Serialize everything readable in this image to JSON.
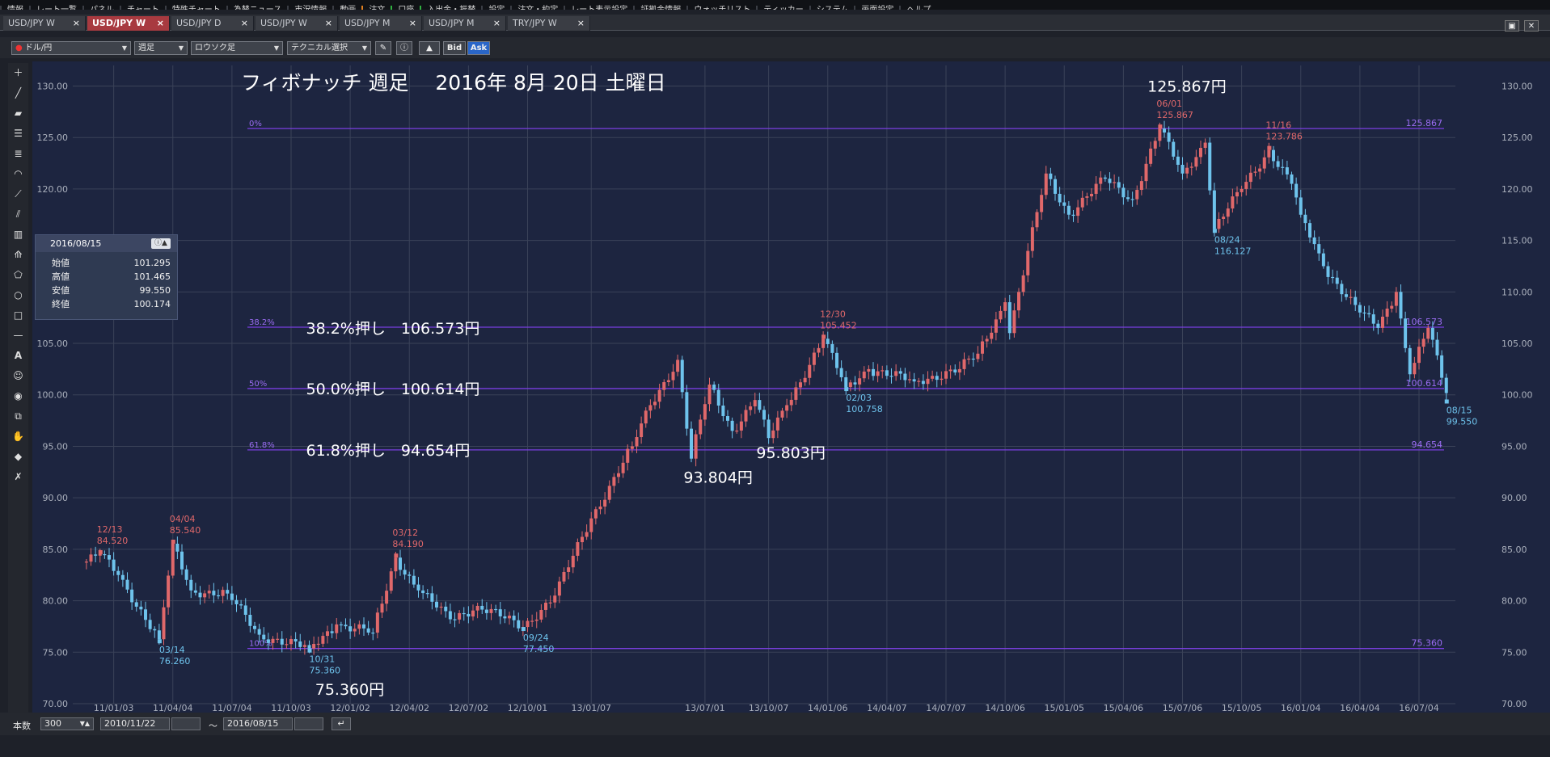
{
  "menu": [
    "情報",
    "レート一覧",
    "パネル",
    "チャート",
    "特殊チャート",
    "為替ニュース",
    "市況情報",
    "動画",
    "注文",
    "口座",
    "入出金・振替",
    "設定",
    "注文・約定",
    "レート表示設定",
    "証拠金情報",
    "ウォッチリスト",
    "ティッカー",
    "システム",
    "画面設定",
    "ヘルプ"
  ],
  "tabs": [
    {
      "label": "USD/JPY W",
      "active": false
    },
    {
      "label": "USD/JPY W",
      "active": true
    },
    {
      "label": "USD/JPY D",
      "active": false
    },
    {
      "label": "USD/JPY W",
      "active": false
    },
    {
      "label": "USD/JPY M",
      "active": false
    },
    {
      "label": "USD/JPY M",
      "active": false
    },
    {
      "label": "TRY/JPY W",
      "active": false
    }
  ],
  "tab_close": "×",
  "toolbar": {
    "pair": "ドル/円",
    "period": "週足",
    "chart_type": "ロウソク足",
    "technical": "テクニカル選択",
    "bid": "Bid",
    "ask": "Ask"
  },
  "info_panel": {
    "date": "2016/08/15",
    "rows": [
      {
        "label": "始値",
        "value": "101.295"
      },
      {
        "label": "高値",
        "value": "101.465"
      },
      {
        "label": "安値",
        "value": "99.550"
      },
      {
        "label": "終値",
        "value": "100.174"
      }
    ]
  },
  "bottom": {
    "count_label": "本数",
    "count_value": "300",
    "start_date": "2010/11/22",
    "tilde": "〜",
    "end_date": "2016/08/15"
  },
  "colors": {
    "up": "#e0686a",
    "down": "#6ec3ec",
    "fib_line": "#7a3fe0",
    "fib_text": "#9a6cf2",
    "high_label": "#e0686a",
    "low_label": "#6ec3ec",
    "bg": "#1d2540",
    "grid": "#3a4258"
  },
  "chart_data": {
    "type": "candlestick",
    "title": "フィボナッチ 週足　 2016年 8月 20日 土曜日",
    "ylim": [
      70,
      132
    ],
    "y_ticks": [
      "70.00",
      "75.00",
      "80.00",
      "85.00",
      "90.00",
      "95.00",
      "100.00",
      "105.00",
      "110.00",
      "115.00",
      "120.00",
      "125.00",
      "130.00"
    ],
    "x_ticks": [
      "11/01/03",
      "11/04/04",
      "11/07/04",
      "11/10/03",
      "12/01/02",
      "12/04/02",
      "12/07/02",
      "12/10/01",
      "13/01/07",
      "13/07/01",
      "13/10/07",
      "14/01/06",
      "14/04/07",
      "14/07/07",
      "14/10/06",
      "15/01/05",
      "15/04/06",
      "15/07/06",
      "15/10/05",
      "16/01/04",
      "16/04/04",
      "16/07/04"
    ],
    "keypoints": [
      {
        "date": "2010/11/22",
        "price": 83.8
      },
      {
        "date": "2010/12/13",
        "price": 84.52
      },
      {
        "date": "2011/01/10",
        "price": 82.5
      },
      {
        "date": "2011/03/14",
        "price": 76.26
      },
      {
        "date": "2011/04/04",
        "price": 85.54
      },
      {
        "date": "2011/05/02",
        "price": 81.0
      },
      {
        "date": "2011/06/27",
        "price": 80.7
      },
      {
        "date": "2011/08/15",
        "price": 76.7
      },
      {
        "date": "2011/10/31",
        "price": 75.36
      },
      {
        "date": "2011/12/12",
        "price": 77.7
      },
      {
        "date": "2012/02/06",
        "price": 76.9
      },
      {
        "date": "2012/03/12",
        "price": 84.19
      },
      {
        "date": "2012/04/16",
        "price": 81.0
      },
      {
        "date": "2012/06/04",
        "price": 78.2
      },
      {
        "date": "2012/07/16",
        "price": 79.5
      },
      {
        "date": "2012/09/24",
        "price": 77.45
      },
      {
        "date": "2012/11/12",
        "price": 80.5
      },
      {
        "date": "2013/01/07",
        "price": 88.0
      },
      {
        "date": "2013/03/11",
        "price": 95.0
      },
      {
        "date": "2013/04/08",
        "price": 99.0
      },
      {
        "date": "2013/05/20",
        "price": 103.4
      },
      {
        "date": "2013/06/10",
        "price": 93.804
      },
      {
        "date": "2013/07/08",
        "price": 101.0
      },
      {
        "date": "2013/08/12",
        "price": 96.5
      },
      {
        "date": "2013/09/16",
        "price": 99.5
      },
      {
        "date": "2013/10/07",
        "price": 95.803
      },
      {
        "date": "2013/11/04",
        "price": 99.0
      },
      {
        "date": "2013/12/30",
        "price": 105.452
      },
      {
        "date": "2014/02/03",
        "price": 100.758
      },
      {
        "date": "2014/03/10",
        "price": 102.5
      },
      {
        "date": "2014/05/19",
        "price": 101.3
      },
      {
        "date": "2014/07/28",
        "price": 102.5
      },
      {
        "date": "2014/08/25",
        "price": 104.0
      },
      {
        "date": "2014/10/06",
        "price": 109.0
      },
      {
        "date": "2014/10/13",
        "price": 106.0
      },
      {
        "date": "2014/12/08",
        "price": 121.5
      },
      {
        "date": "2015/01/12",
        "price": 117.5
      },
      {
        "date": "2015/03/09",
        "price": 121.0
      },
      {
        "date": "2015/04/20",
        "price": 119.0
      },
      {
        "date": "2015/06/01",
        "price": 125.867
      },
      {
        "date": "2015/07/06",
        "price": 121.5
      },
      {
        "date": "2015/08/10",
        "price": 124.5
      },
      {
        "date": "2015/08/24",
        "price": 116.127
      },
      {
        "date": "2015/10/05",
        "price": 120.0
      },
      {
        "date": "2015/11/16",
        "price": 123.786
      },
      {
        "date": "2015/12/21",
        "price": 120.5
      },
      {
        "date": "2016/01/04",
        "price": 117.5
      },
      {
        "date": "2016/02/08",
        "price": 112.5
      },
      {
        "date": "2016/04/04",
        "price": 108.0
      },
      {
        "date": "2016/05/02",
        "price": 106.5
      },
      {
        "date": "2016/05/30",
        "price": 110.0
      },
      {
        "date": "2016/06/20",
        "price": 102.0
      },
      {
        "date": "2016/07/18",
        "price": 106.5
      },
      {
        "date": "2016/08/15",
        "price": 100.174
      }
    ],
    "point_labels": [
      {
        "date": "2010/12/13",
        "d": "12/13",
        "v": "84.520",
        "type": "high"
      },
      {
        "date": "2011/04/04",
        "d": "04/04",
        "v": "85.540",
        "type": "high"
      },
      {
        "date": "2012/03/12",
        "d": "03/12",
        "v": "84.190",
        "type": "high"
      },
      {
        "date": "2013/12/30",
        "d": "12/30",
        "v": "105.452",
        "type": "high"
      },
      {
        "date": "2015/06/01",
        "d": "06/01",
        "v": "125.867",
        "type": "high"
      },
      {
        "date": "2015/11/16",
        "d": "11/16",
        "v": "123.786",
        "type": "high"
      },
      {
        "date": "2011/03/14",
        "d": "03/14",
        "v": "76.260",
        "type": "low"
      },
      {
        "date": "2011/10/31",
        "d": "10/31",
        "v": "75.360",
        "type": "low"
      },
      {
        "date": "2012/09/24",
        "d": "09/24",
        "v": "77.450",
        "type": "low"
      },
      {
        "date": "2014/02/03",
        "d": "02/03",
        "v": "100.758",
        "type": "low"
      },
      {
        "date": "2015/08/24",
        "d": "08/24",
        "v": "116.127",
        "type": "low"
      },
      {
        "date": "2016/08/15",
        "d": "08/15",
        "v": "99.550",
        "type": "low"
      }
    ],
    "fib_levels": [
      {
        "pct": "0%",
        "price": 125.867,
        "value": "125.867"
      },
      {
        "pct": "38.2%",
        "price": 106.573,
        "value": "106.573"
      },
      {
        "pct": "50%",
        "price": 100.614,
        "value": "100.614"
      },
      {
        "pct": "61.8%",
        "price": 94.654,
        "value": "94.654"
      },
      {
        "pct": "100%",
        "price": 75.36,
        "value": "75.360"
      }
    ],
    "annotations": [
      {
        "text": "38.2%押し　106.573円",
        "date": "2011/10/31",
        "price": 106.5
      },
      {
        "text": "50.0%押し　100.614円",
        "date": "2011/10/31",
        "price": 100.6
      },
      {
        "text": "61.8%押し　94.654円",
        "date": "2011/10/31",
        "price": 94.65
      },
      {
        "text": "125.867円",
        "date": "2015/05/18",
        "price": 130.0
      },
      {
        "text": "93.804円",
        "date": "2013/06/03",
        "price": 92.0
      },
      {
        "text": "95.803円",
        "date": "2013/09/23",
        "price": 94.4
      },
      {
        "text": "75.360円",
        "date": "2011/11/14",
        "price": 71.4
      }
    ]
  }
}
